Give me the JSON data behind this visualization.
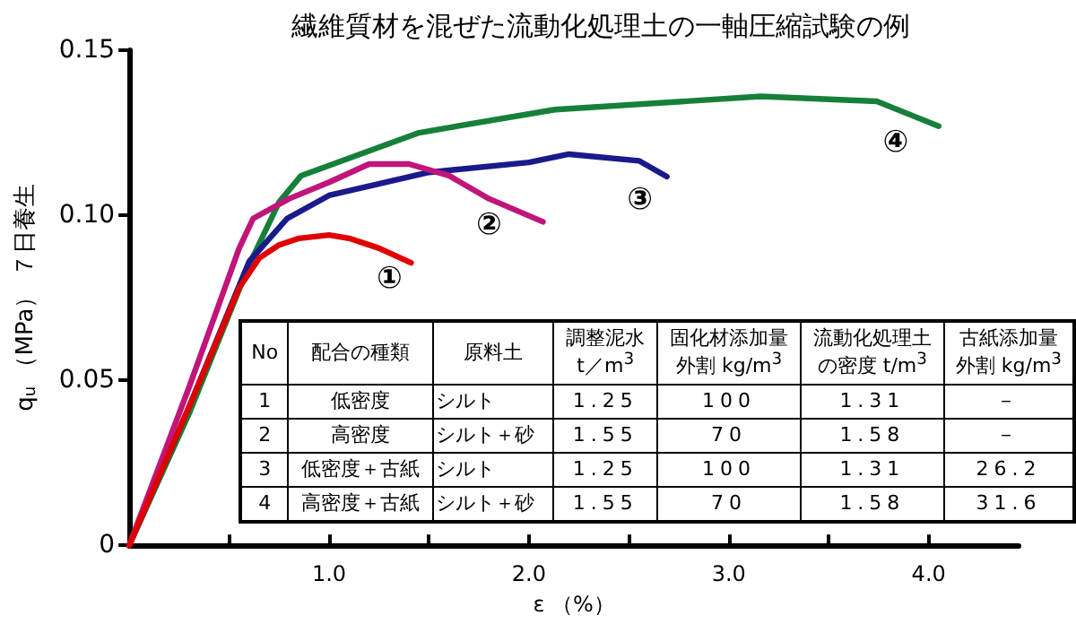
{
  "chart_data": {
    "type": "line",
    "title": "繊維質材を混ぜた流動化処理土の一軸圧縮試験の例",
    "xlabel": "ε （%）",
    "ylabel": "q$_{u}$ （MPa） ７日養生",
    "xlim": [
      0,
      4.45
    ],
    "ylim": [
      0,
      0.15
    ],
    "xticks": [
      {
        "value": 0.5,
        "label": null
      },
      {
        "value": 1,
        "label": "1.0"
      },
      {
        "value": 1.5,
        "label": null
      },
      {
        "value": 2,
        "label": "2.0"
      },
      {
        "value": 2.5,
        "label": null
      },
      {
        "value": 3,
        "label": "3.0"
      },
      {
        "value": 3.5,
        "label": null
      },
      {
        "value": 4,
        "label": "4.0"
      }
    ],
    "yticks": [
      0,
      0.05,
      {
        "value": 0.1,
        "label": "0.10"
      },
      0.15
    ],
    "grid": false,
    "legend": false,
    "marker": "none",
    "line_style": "solid",
    "series": [
      {
        "name": "①",
        "color": "#e00000",
        "x": [
          0,
          0.3,
          0.55,
          0.65,
          0.75,
          0.85,
          1.0,
          1.1,
          1.25,
          1.41
        ],
        "values": [
          0,
          0.042,
          0.078,
          0.087,
          0.091,
          0.093,
          0.094,
          0.093,
          0.09,
          0.0856
        ]
      },
      {
        "name": "②",
        "color": "#c0157a",
        "x": [
          0,
          0.3,
          0.55,
          0.62,
          0.8,
          1.0,
          1.2,
          1.4,
          1.6,
          1.8,
          2.07
        ],
        "values": [
          0,
          0.048,
          0.09,
          0.099,
          0.105,
          0.11,
          0.1155,
          0.1155,
          0.112,
          0.105,
          0.098
        ]
      },
      {
        "name": "③",
        "color": "#1a1a8c",
        "x": [
          0,
          0.3,
          0.6,
          0.79,
          1.0,
          1.5,
          2.0,
          2.2,
          2.55,
          2.69
        ],
        "values": [
          0,
          0.042,
          0.086,
          0.099,
          0.106,
          0.113,
          0.116,
          0.1185,
          0.1165,
          0.1117
        ]
      },
      {
        "name": "④",
        "color": "#16803a",
        "x": [
          0,
          0.3,
          0.6,
          0.75,
          0.86,
          1.45,
          2.13,
          3.16,
          3.74,
          4.05
        ],
        "values": [
          0,
          0.04,
          0.085,
          0.104,
          0.112,
          0.125,
          0.132,
          0.136,
          0.1345,
          0.127
        ]
      }
    ],
    "annotations": [
      "No",
      "配合の種類",
      "原料土",
      "調整泥水",
      "固化材添加量",
      "流動化処理土",
      "古紙添加量",
      null,
      null,
      null,
      "t／m$^{3}$",
      "外割 kg/m$^{3}$",
      "の密度 t/m$^{3}$",
      "外割 kg/m$^{3}$",
      "1",
      "低密度",
      "シルト",
      "1.25",
      "100",
      "1.31",
      "－",
      "2",
      "高密度",
      "シルト＋砂",
      "1.55",
      "70",
      "1.58",
      "－",
      "3",
      "低密度＋古紙",
      "シルト",
      "1.25",
      "100",
      "1.31",
      "26.2",
      "4",
      "高密度＋古紙",
      "シルト＋砂",
      "1.55",
      "70",
      "1.58",
      "31.6"
    ]
  }
}
